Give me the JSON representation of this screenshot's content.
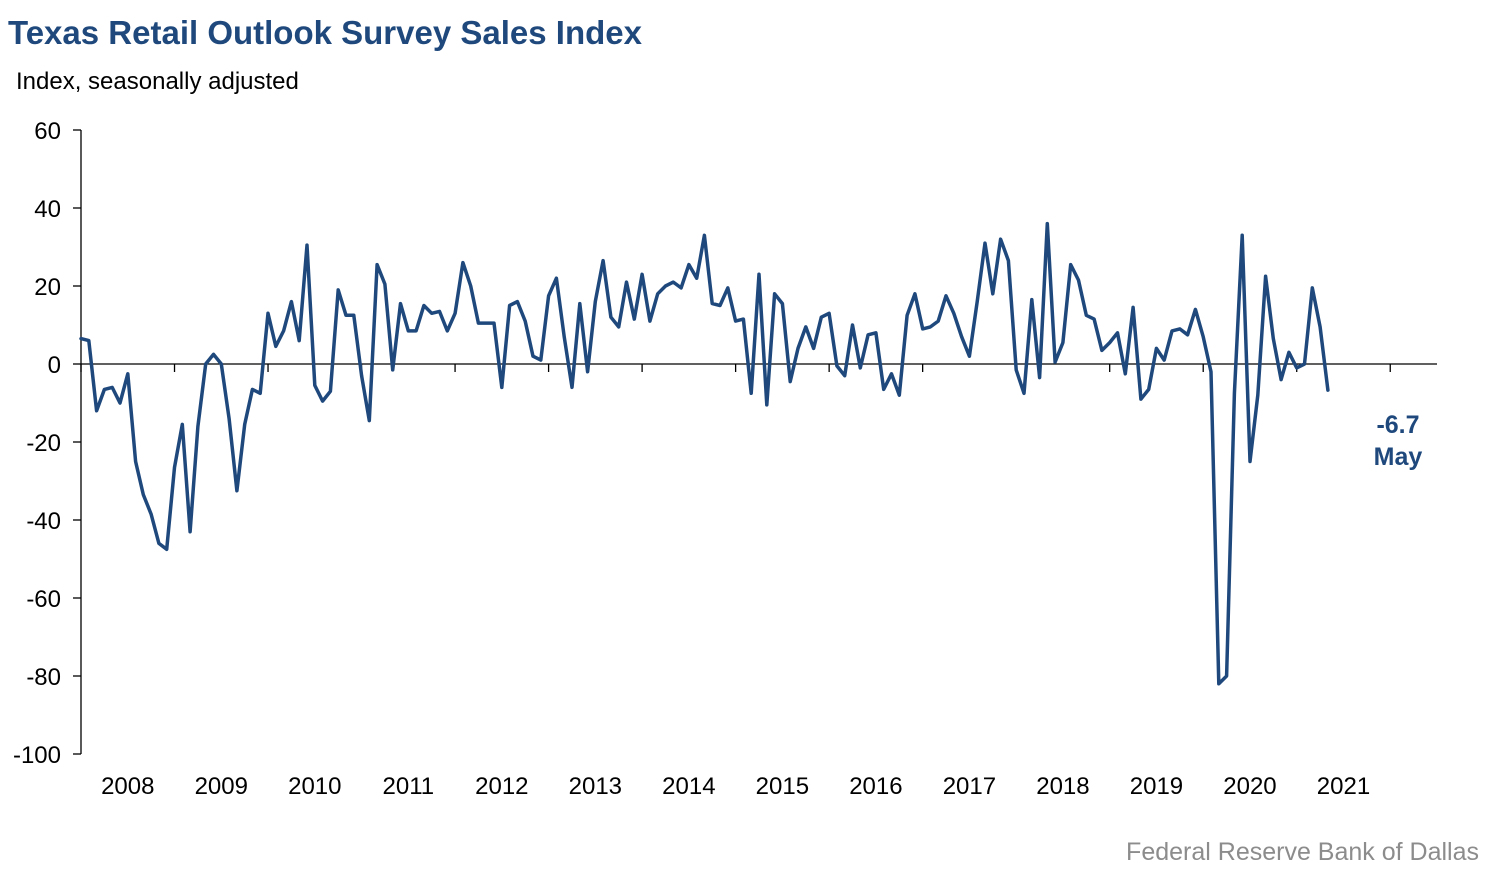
{
  "header": {
    "title": "Texas Retail Outlook Survey Sales Index",
    "subtitle": "Index, seasonally adjusted"
  },
  "footer": {
    "source": "Federal Reserve Bank of Dallas"
  },
  "chart_data": {
    "type": "line",
    "title": "Texas Retail Outlook Survey Sales Index",
    "ylabel": "Index, seasonally adjusted",
    "xlabel": "",
    "ylim": [
      -100,
      60
    ],
    "yticks": [
      60,
      40,
      20,
      0,
      -20,
      -40,
      -60,
      -80,
      -100
    ],
    "xticks": [
      "2008",
      "2009",
      "2010",
      "2011",
      "2012",
      "2013",
      "2014",
      "2015",
      "2016",
      "2017",
      "2018",
      "2019",
      "2020",
      "2021"
    ],
    "x_start": "2007-07",
    "x_end": "2021-05",
    "grid": false,
    "line_color": "#1f497d",
    "series": [
      {
        "values": [
          6.5,
          6,
          -12,
          -6.5,
          -6,
          -10,
          -2.5,
          -25,
          -33.5,
          -38.5,
          -46,
          -47.5,
          -26.5,
          -15.5,
          -43,
          -16,
          0,
          2.5,
          0,
          -14,
          -32.5,
          -15.5,
          -6.5,
          -7.5,
          13,
          4.5,
          8.5,
          16,
          6,
          30.5,
          -5.5,
          -9.5,
          -7,
          19,
          12.5,
          12.5,
          -3,
          -14.5,
          25.5,
          20.5,
          -1.5,
          15.5,
          8.5,
          8.5,
          15,
          13,
          13.5,
          8.5,
          13,
          26,
          20,
          10.5,
          10.5,
          10.5,
          -6,
          15,
          16,
          11,
          2,
          1,
          17.5,
          22,
          7,
          -6,
          15.5,
          -2,
          16,
          26.5,
          12,
          9.5,
          21,
          11.5,
          23,
          11,
          18,
          20,
          21,
          19.5,
          25.5,
          22,
          33,
          15.5,
          15,
          19.5,
          11,
          11.5,
          -7.5,
          23,
          -10.5,
          18,
          15.5,
          -4.5,
          4,
          9.5,
          4,
          12,
          13,
          -0.5,
          -3,
          10,
          -1,
          7.5,
          8,
          -6.5,
          -2.5,
          -8,
          12.5,
          18,
          9,
          9.5,
          11,
          17.5,
          13,
          7,
          2,
          16,
          31,
          18,
          32,
          26.5,
          -1.5,
          -7.5,
          16.5,
          -3.5,
          36,
          0.5,
          5.5,
          25.5,
          21.5,
          12.5,
          11.5,
          3.5,
          5.5,
          8,
          -2.5,
          14.5,
          -9,
          -6.5,
          4,
          1,
          8.5,
          9,
          7.5,
          14,
          7,
          -2,
          -82,
          -80,
          -7.5,
          33,
          -25,
          -8,
          22.5,
          6.5,
          -4,
          3,
          -1,
          0,
          19.5,
          9.5,
          -6.7
        ]
      }
    ],
    "annotation": {
      "value_label": "-6.7",
      "month_label": "May"
    }
  }
}
